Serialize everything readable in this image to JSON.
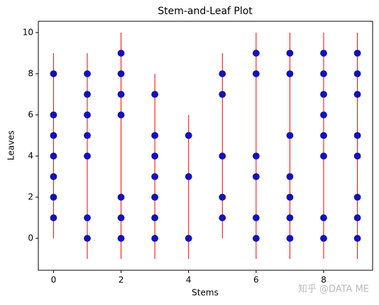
{
  "chart_data": {
    "type": "scatter",
    "title": "Stem-and-Leaf Plot",
    "x_label": "Stems",
    "y_label": "Leaves",
    "xlim": [
      -0.45,
      9.45
    ],
    "ylim": [
      -1.55,
      10.55
    ],
    "xticks": [
      0,
      2,
      4,
      6,
      8
    ],
    "yticks": [
      0,
      2,
      4,
      6,
      8,
      10
    ],
    "series": [
      {
        "color": "#1010c8",
        "x": [
          0,
          0,
          0,
          0,
          0,
          0,
          0,
          1,
          1,
          1,
          1,
          1,
          1,
          1,
          2,
          2,
          2,
          2,
          2,
          2,
          2,
          3,
          3,
          3,
          3,
          3,
          3,
          3,
          4,
          4,
          4,
          5,
          5,
          5,
          5,
          5,
          6,
          6,
          6,
          6,
          6,
          6,
          7,
          7,
          7,
          7,
          7,
          7,
          7,
          8,
          8,
          8,
          8,
          8,
          8,
          8,
          8,
          9,
          9,
          9,
          9,
          9,
          9,
          9,
          9
        ],
        "y": [
          1,
          2,
          3,
          4,
          5,
          6,
          8,
          0,
          1,
          4,
          5,
          6,
          7,
          8,
          0,
          1,
          2,
          6,
          7,
          8,
          9,
          0,
          1,
          2,
          3,
          4,
          5,
          7,
          0,
          3,
          5,
          1,
          2,
          4,
          7,
          8,
          0,
          1,
          3,
          4,
          8,
          9,
          0,
          1,
          2,
          3,
          5,
          8,
          9,
          0,
          1,
          4,
          5,
          6,
          7,
          8,
          9,
          0,
          1,
          2,
          4,
          5,
          7,
          8,
          9
        ]
      }
    ],
    "stem_lines": {
      "color": "red",
      "x": [
        0,
        1,
        2,
        3,
        4,
        5,
        6,
        7,
        8,
        9
      ],
      "low": [
        0,
        -1,
        -1,
        -1,
        -1,
        0,
        -1,
        -1,
        -1,
        -1
      ],
      "high": [
        9,
        9,
        10,
        8,
        6,
        9,
        10,
        10,
        10,
        10
      ]
    },
    "annotation": "知乎 @DATA ME"
  }
}
